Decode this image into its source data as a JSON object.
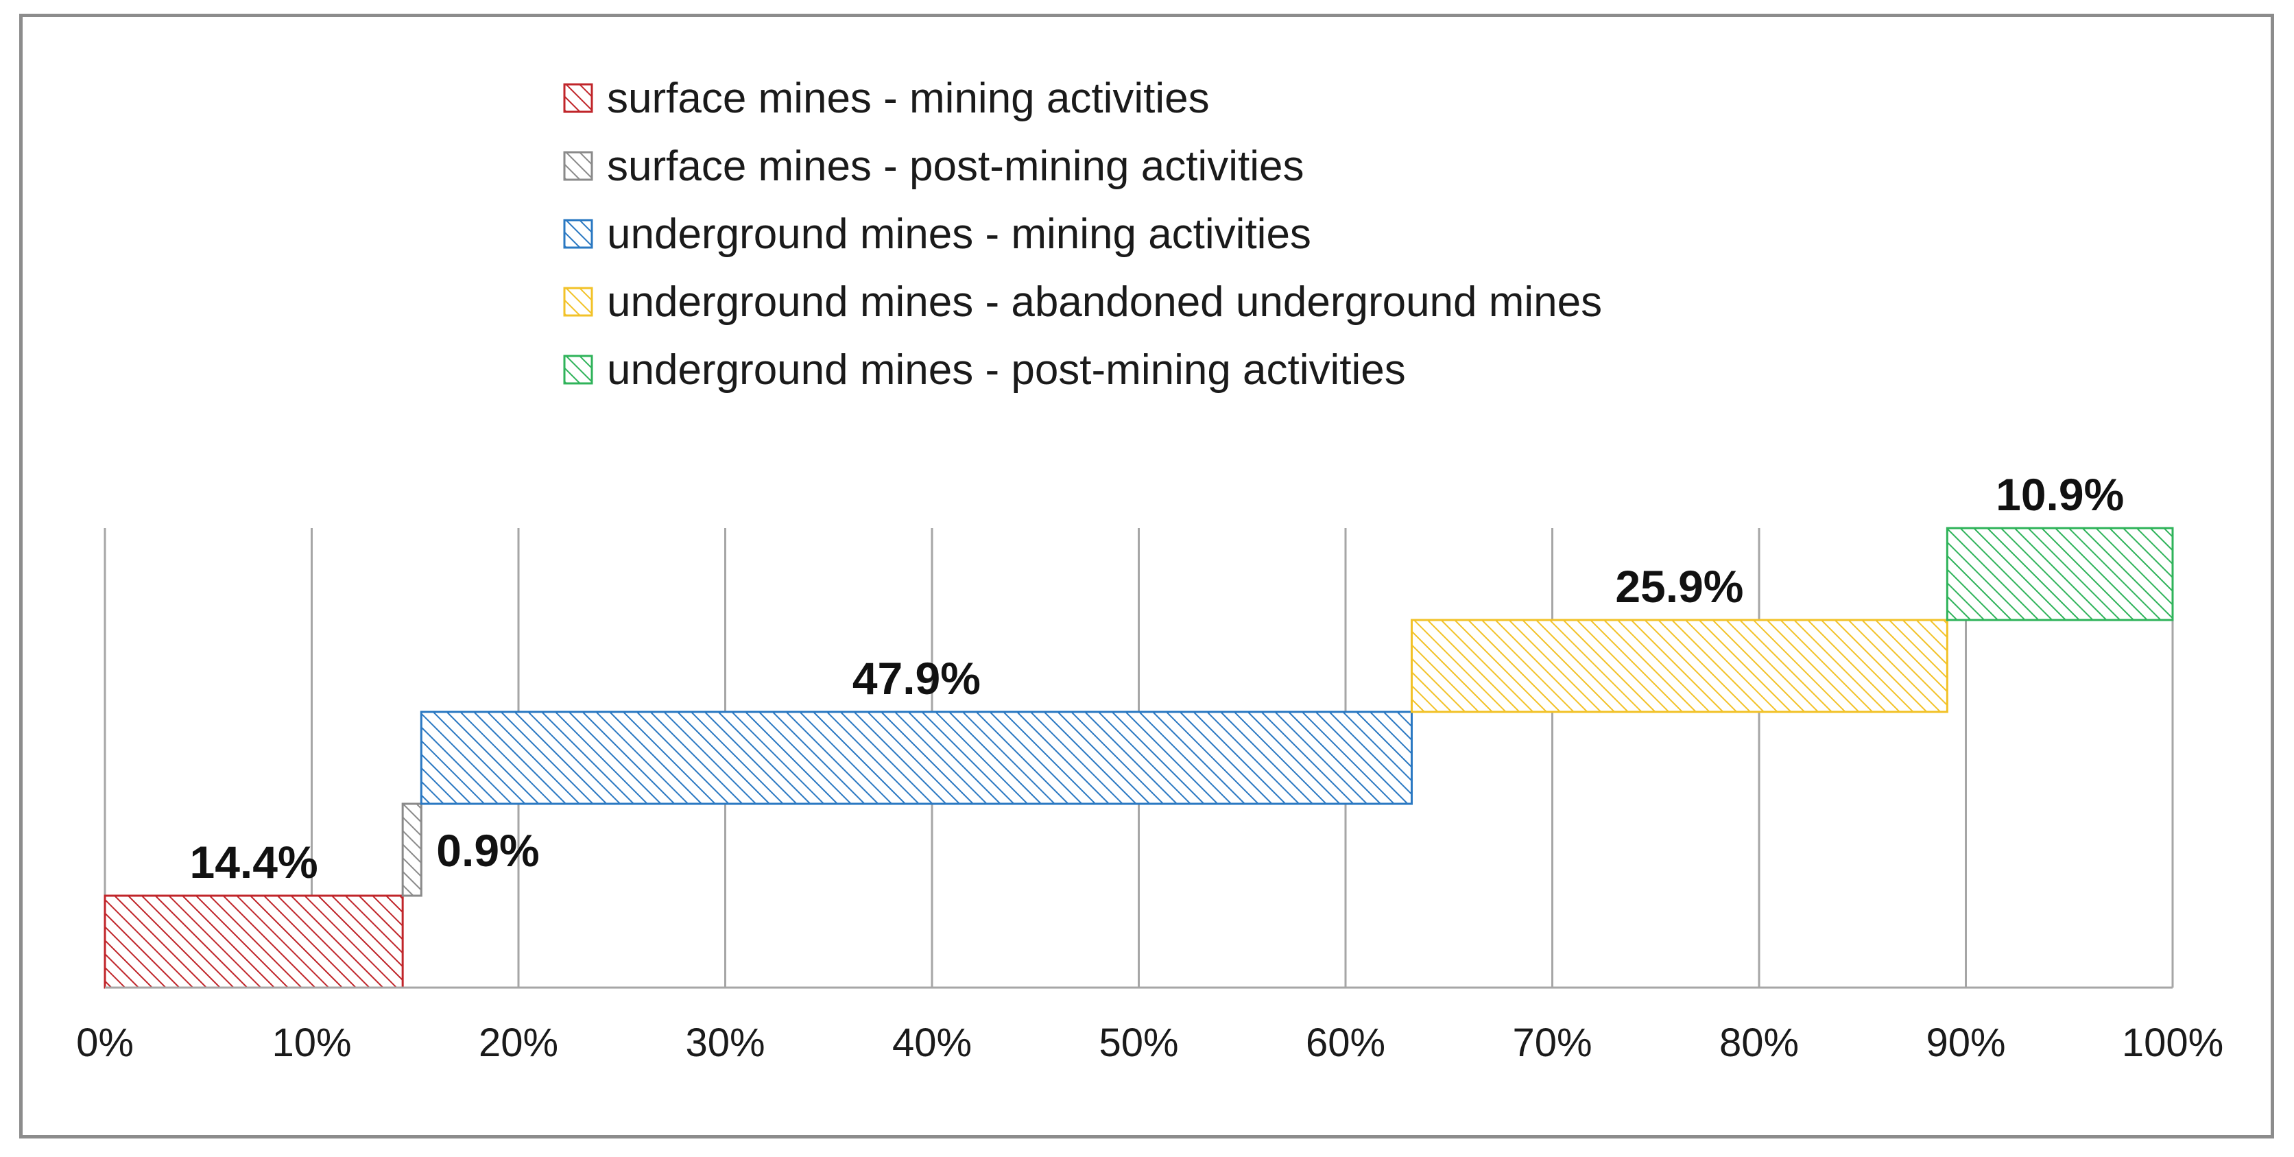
{
  "chart_data": {
    "type": "bar",
    "subtype": "waterfall-horizontal",
    "title": "",
    "xlabel": "",
    "ylabel": "",
    "xlim": [
      0,
      100
    ],
    "x_tick_labels": [
      "0%",
      "10%",
      "20%",
      "30%",
      "40%",
      "50%",
      "60%",
      "70%",
      "80%",
      "90%",
      "100%"
    ],
    "x_tick_values": [
      0,
      10,
      20,
      30,
      40,
      50,
      60,
      70,
      80,
      90,
      100
    ],
    "grid": "vertical",
    "legend_position": "top-center",
    "series": [
      {
        "name": "surface mines - mining activities",
        "value": 14.4,
        "label": "14.4%",
        "color": "#c0252a",
        "label_side": "above"
      },
      {
        "name": "surface mines - post-mining activities",
        "value": 0.9,
        "label": "0.9%",
        "color": "#8a8a8a",
        "label_side": "right"
      },
      {
        "name": "underground mines - mining activities",
        "value": 47.9,
        "label": "47.9%",
        "color": "#2a78c2",
        "label_side": "above"
      },
      {
        "name": "underground mines - abandoned underground mines",
        "value": 25.9,
        "label": "25.9%",
        "color": "#f2c228",
        "label_side": "above"
      },
      {
        "name": "underground mines - post-mining activities",
        "value": 10.9,
        "label": "10.9%",
        "color": "#2fb35a",
        "label_side": "above"
      }
    ]
  }
}
